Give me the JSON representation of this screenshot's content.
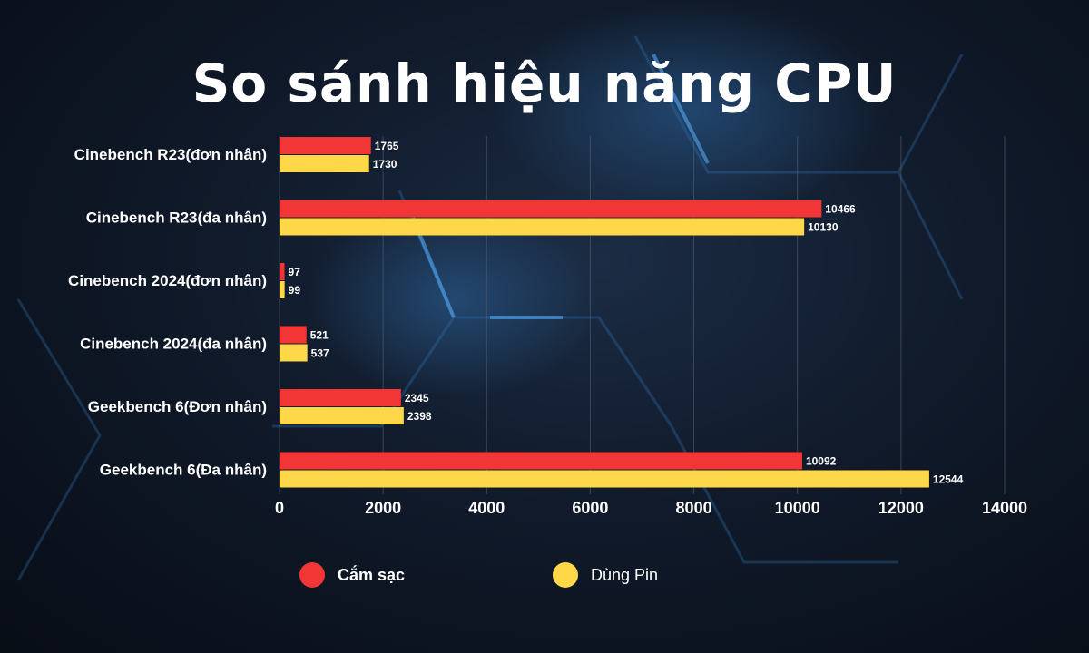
{
  "title": "So sánh hiệu năng CPU",
  "chart_data": {
    "type": "bar",
    "orientation": "horizontal",
    "categories": [
      "Cinebench R23(đơn nhân)",
      "Cinebench R23(đa nhân)",
      "Cinebench 2024(đơn nhân)",
      "Cinebench 2024(đa nhân)",
      "Geekbench 6(Đơn nhân)",
      "Geekbench 6(Đa nhân)"
    ],
    "series": [
      {
        "name": "Cắm sạc",
        "color": "#f23535",
        "values": [
          1765,
          10466,
          97,
          521,
          2345,
          10092
        ]
      },
      {
        "name": "Dùng Pin",
        "color": "#ffd84a",
        "values": [
          1730,
          10130,
          99,
          537,
          2398,
          12544
        ]
      }
    ],
    "xlim": [
      0,
      14000
    ],
    "xticks": [
      0,
      2000,
      4000,
      6000,
      8000,
      10000,
      12000,
      14000
    ],
    "grid": true,
    "legend_position": "bottom"
  }
}
